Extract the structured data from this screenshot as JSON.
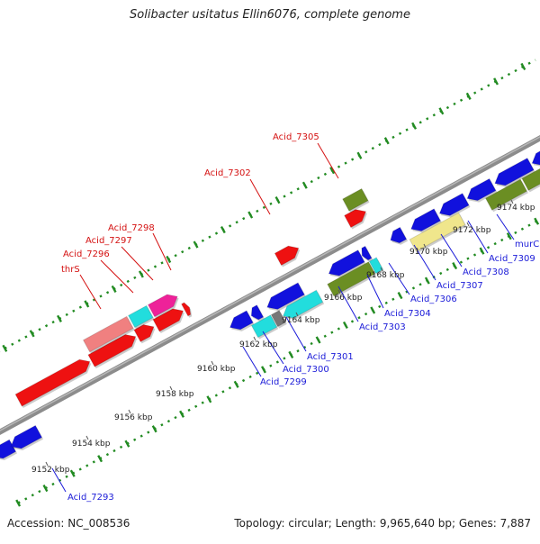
{
  "title": "Solibacter usitatus Ellin6076, complete genome",
  "footer": {
    "accession": "Accession: NC_008536",
    "summary": "Topology: circular; Length: 9,965,640 bp; Genes: 7,887"
  },
  "ticks": [
    "9152 kbp",
    "9154 kbp",
    "9156 kbp",
    "9158 kbp",
    "9160 kbp",
    "9162 kbp",
    "9164 kbp",
    "9166 kbp",
    "9168 kbp",
    "9170 kbp",
    "9172 kbp",
    "9174 kbp"
  ],
  "labels_forward": [
    "thrS",
    "Acid_7296",
    "Acid_7297",
    "Acid_7298",
    "Acid_7302",
    "Acid_7305"
  ],
  "labels_reverse": [
    "Acid_7293",
    "Acid_7299",
    "Acid_7300",
    "Acid_7301",
    "Acid_7303",
    "Acid_7304",
    "Acid_7306",
    "Acid_7307",
    "Acid_7308",
    "Acid_7309",
    "murC"
  ],
  "colors": {
    "red": "#ee1111",
    "salmon": "#f08080",
    "cyan": "#22dddd",
    "magenta": "#ee2299",
    "blue": "#1111dd",
    "olive": "#6b8e23",
    "khaki": "#f0e68c",
    "gray": "#777777",
    "dots": "#228b22",
    "backbone": "#8c8c8c"
  }
}
